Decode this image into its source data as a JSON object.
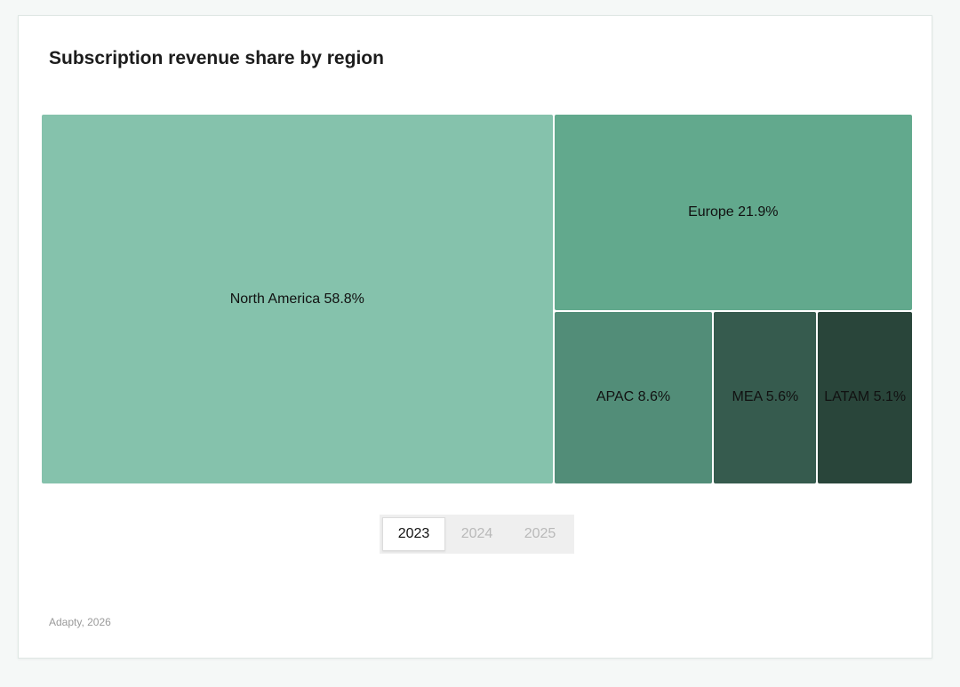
{
  "title": "Subscription revenue share by region",
  "source": "Adapty, 2026",
  "year_toggle": {
    "options": [
      "2023",
      "2024",
      "2025"
    ],
    "selected": "2023"
  },
  "chart_data": {
    "type": "treemap",
    "title": "Subscription revenue share by region",
    "unit": "%",
    "items": [
      {
        "name": "North America",
        "value": 58.8,
        "label": "North America 58.8%",
        "color": "#85c2ac"
      },
      {
        "name": "Europe",
        "value": 21.9,
        "label": "Europe 21.9%",
        "color": "#62a98d"
      },
      {
        "name": "APAC",
        "value": 8.6,
        "label": "APAC 8.6%",
        "color": "#528d78"
      },
      {
        "name": "MEA",
        "value": 5.6,
        "label": "MEA 5.6%",
        "color": "#365b4e"
      },
      {
        "name": "LATAM",
        "value": 5.1,
        "label": "LATAM 5.1%",
        "color": "#29453a"
      }
    ]
  }
}
